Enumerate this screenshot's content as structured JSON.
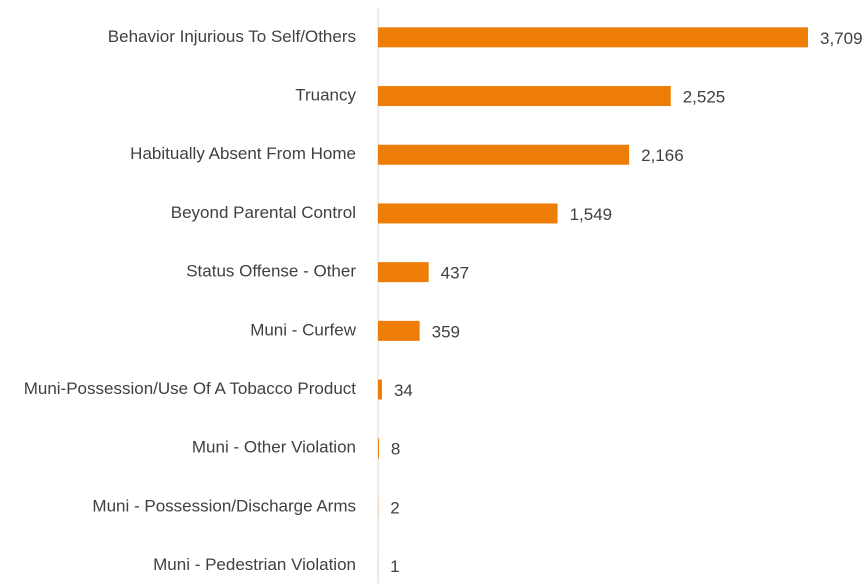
{
  "chart_data": {
    "type": "bar",
    "orientation": "horizontal",
    "categories": [
      "Behavior Injurious To Self/Others",
      "Truancy",
      "Habitually Absent From Home",
      "Beyond Parental Control",
      "Status Offense - Other",
      "Muni - Curfew",
      "Muni-Possession/Use Of A Tobacco Product",
      "Muni - Other Violation",
      "Muni - Possession/Discharge Arms",
      "Muni - Pedestrian Violation"
    ],
    "values": [
      3709,
      2525,
      2166,
      1549,
      437,
      359,
      34,
      8,
      2,
      1
    ],
    "value_labels": [
      "3,709",
      "2,525",
      "2,166",
      "1,549",
      "437",
      "359",
      "34",
      "8",
      "2",
      "1"
    ],
    "color": "#ed7d05"
  }
}
